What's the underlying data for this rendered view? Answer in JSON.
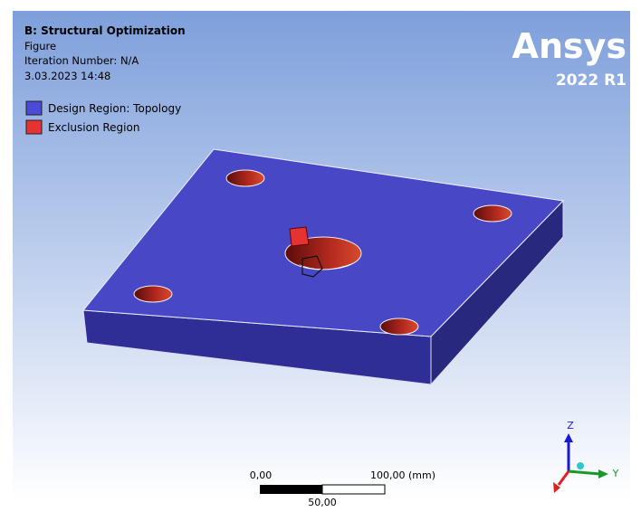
{
  "header": {
    "title": "B: Structural Optimization",
    "subtitle": "Figure",
    "iteration": "Iteration Number: N/A",
    "date": "3.03.2023 14:48"
  },
  "legend": [
    {
      "label": "Design Region: Topology",
      "color": "#4b4bd6"
    },
    {
      "label": "Exclusion Region",
      "color": "#e53333"
    }
  ],
  "logo": {
    "brand": "Ansys",
    "version": "2022 R1"
  },
  "scale_bar": {
    "start": "0,00",
    "mid": "50,00",
    "end": "100,00 (mm)"
  },
  "triad": {
    "z": "Z",
    "y": "Y"
  }
}
